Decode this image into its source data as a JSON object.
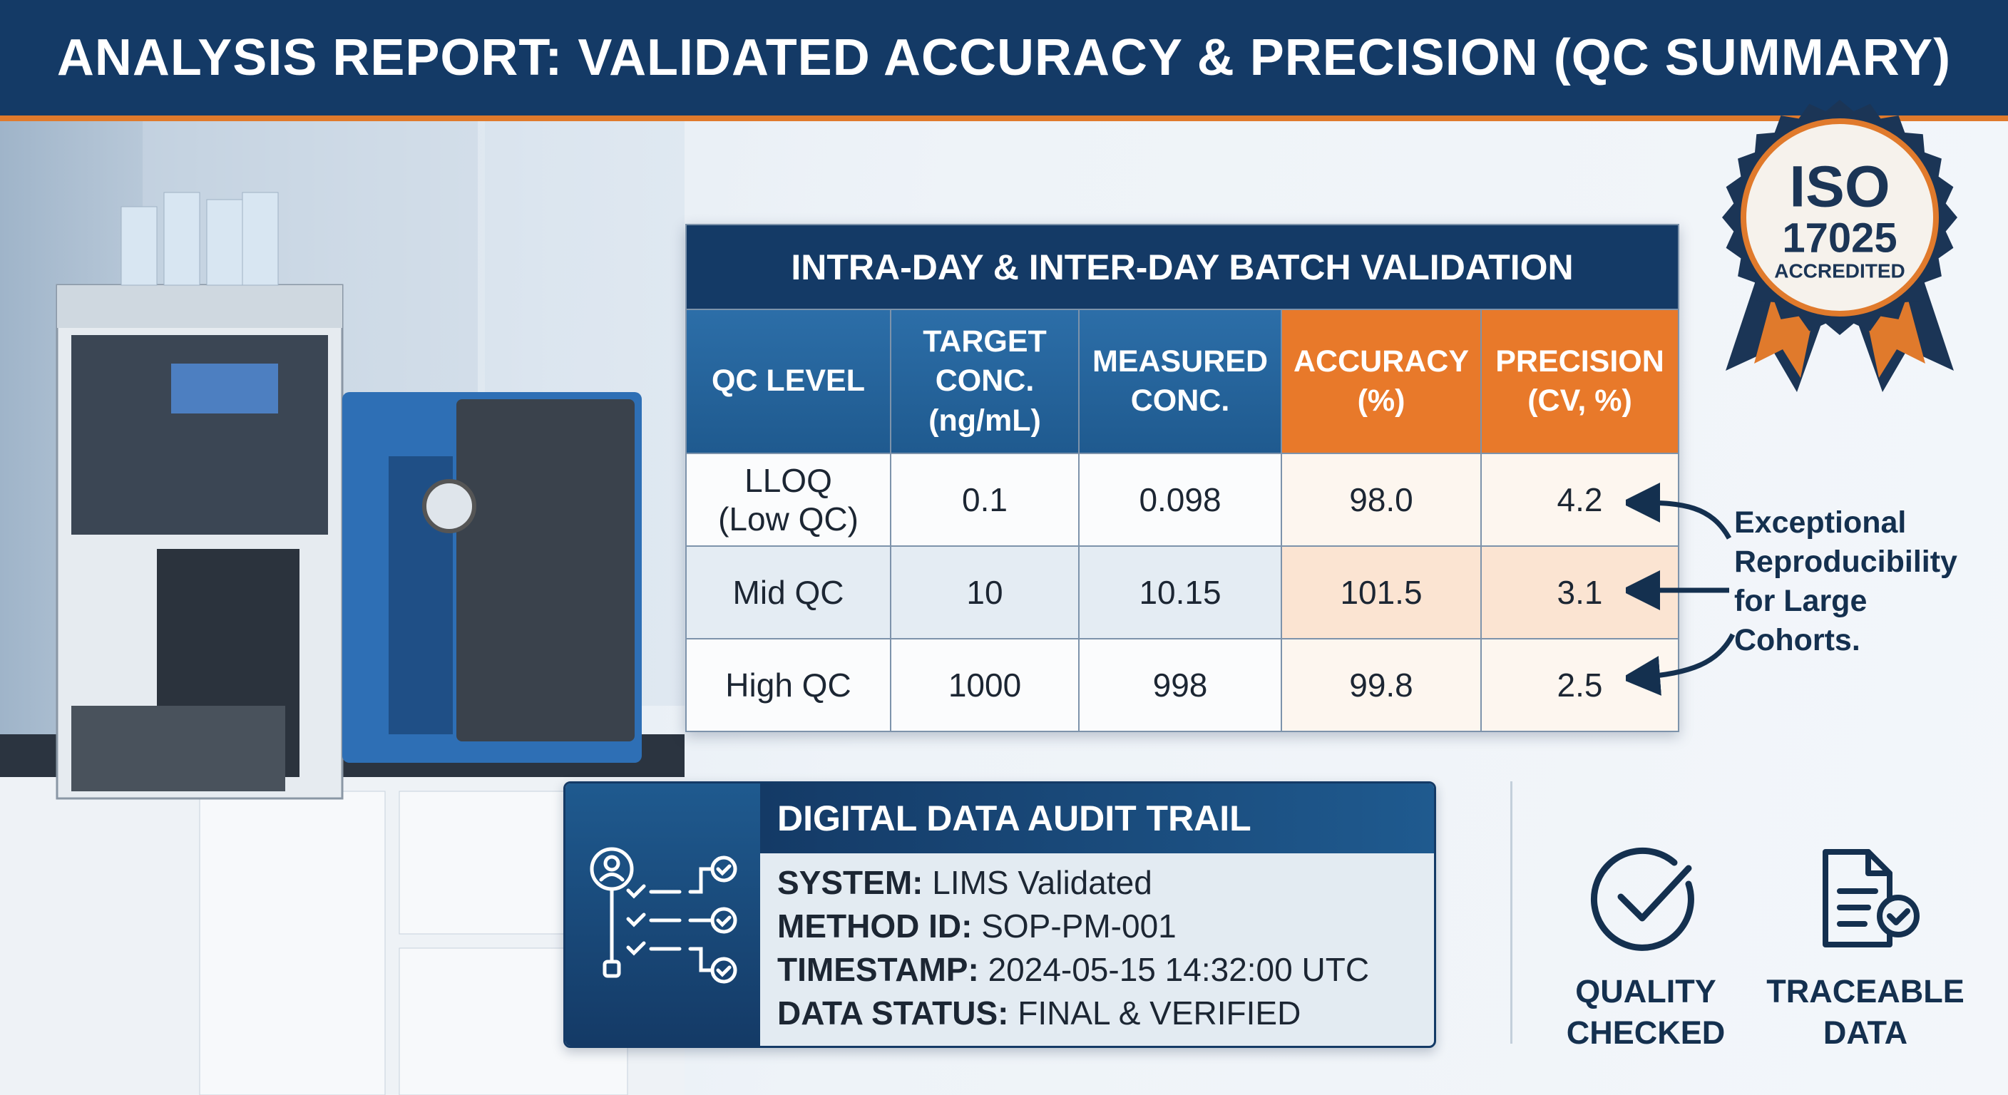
{
  "header": {
    "title": "ANALYSIS REPORT: VALIDATED ACCURACY & PRECISION (QC SUMMARY)"
  },
  "badge": {
    "line1": "ISO",
    "line2": "17025",
    "line3": "ACCREDITED"
  },
  "table": {
    "title": "INTRA-DAY & INTER-DAY BATCH VALIDATION",
    "columns": [
      "QC LEVEL",
      "TARGET CONC. (ng/mL)",
      "MEASURED CONC.",
      "ACCURACY (%)",
      "PRECISION (CV, %)"
    ],
    "rows": [
      [
        "LLOQ (Low QC)",
        "0.1",
        "0.098",
        "98.0",
        "4.2"
      ],
      [
        "Mid QC",
        "10",
        "10.15",
        "101.5",
        "3.1"
      ],
      [
        "High QC",
        "1000",
        "998",
        "99.8",
        "2.5"
      ]
    ]
  },
  "annotation": "Exceptional Reproducibility for Large Cohorts.",
  "audit": {
    "title": "DIGITAL DATA AUDIT TRAIL",
    "items": [
      {
        "label": "SYSTEM:",
        "value": "LIMS Validated"
      },
      {
        "label": "METHOD ID:",
        "value": "SOP-PM-001"
      },
      {
        "label": "TIMESTAMP:",
        "value": "2024-05-15 14:32:00 UTC"
      },
      {
        "label": "DATA STATUS:",
        "value": "FINAL & VERIFIED"
      }
    ]
  },
  "badges": [
    {
      "label": "QUALITY CHECKED"
    },
    {
      "label": "TRACEABLE DATA"
    }
  ]
}
